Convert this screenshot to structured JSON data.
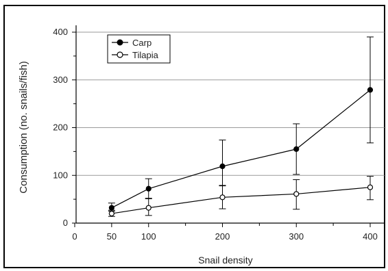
{
  "chart_data": {
    "type": "line",
    "xlabel": "Snail density",
    "ylabel": "Consumption (no. snails/fish)",
    "xlim": [
      0,
      400
    ],
    "ylim": [
      0,
      400
    ],
    "x_ticks": [
      0,
      50,
      100,
      200,
      300,
      400
    ],
    "y_ticks": [
      0,
      100,
      200,
      300,
      400
    ],
    "grid": "horizontal",
    "legend": "top-left",
    "x": [
      50,
      100,
      200,
      300,
      400
    ],
    "series": [
      {
        "name": "Carp",
        "marker": "filled-circle",
        "color": "#000000",
        "values": [
          32,
          72,
          119,
          155,
          279
        ],
        "err_low": [
          25,
          52,
          78,
          102,
          168
        ],
        "err_high": [
          42,
          93,
          174,
          208,
          390
        ]
      },
      {
        "name": "Tilapia",
        "marker": "open-circle",
        "color": "#000000",
        "values": [
          20,
          32,
          54,
          61,
          75
        ],
        "err_low": [
          14,
          16,
          30,
          29,
          49
        ],
        "err_high": [
          27,
          51,
          79,
          91,
          98
        ]
      }
    ]
  }
}
